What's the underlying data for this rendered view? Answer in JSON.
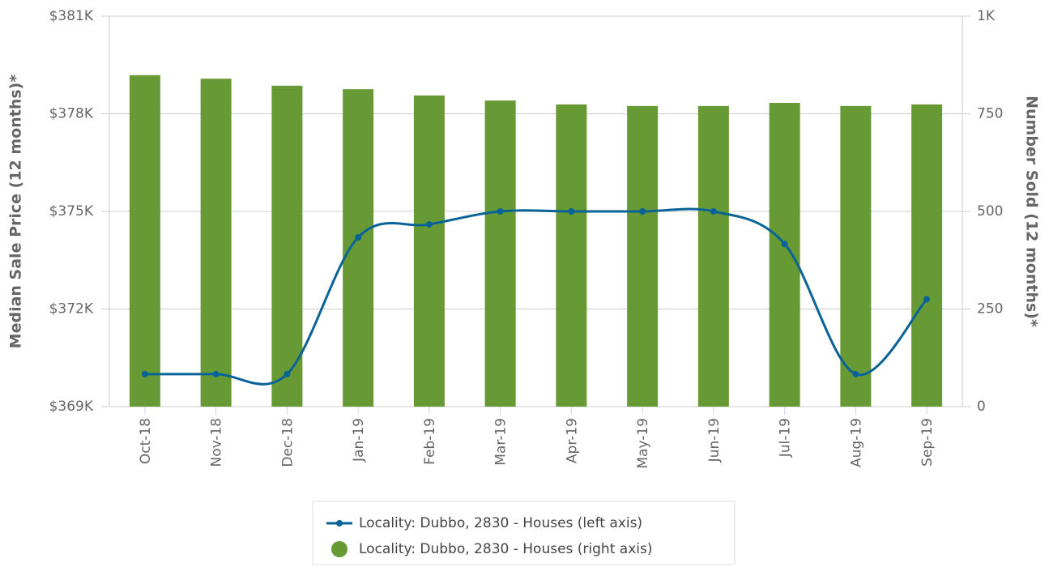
{
  "chart_data": {
    "type": "bar-line",
    "y_label": "Median Sale Price (12 months)*",
    "y2_label": "Number Sold (12 months)*",
    "categories": [
      "Oct-18",
      "Nov-18",
      "Dec-18",
      "Jan-19",
      "Feb-19",
      "Mar-19",
      "Apr-19",
      "May-19",
      "Jun-19",
      "Jul-19",
      "Aug-19",
      "Sep-19"
    ],
    "series": [
      {
        "name": "Locality: Dubbo, 2830 - Houses (left axis)",
        "type": "line",
        "color": "#0a6396",
        "values": [
          370000,
          370000,
          370000,
          374200,
          374600,
          375000,
          375000,
          375000,
          375000,
          374000,
          370000,
          372300
        ]
      },
      {
        "name": "Locality: Dubbo, 2830 - Houses (right axis)",
        "type": "bar",
        "axis": "y2",
        "color": "#679a35",
        "values": [
          849,
          840,
          822,
          813,
          797,
          784,
          774,
          770,
          770,
          778,
          770,
          774
        ]
      }
    ],
    "ylim": [
      369000,
      381000
    ],
    "yticks": [
      {
        "value": 369000,
        "label": "$369K"
      },
      {
        "value": 372000,
        "label": "$372K"
      },
      {
        "value": 375000,
        "label": "$375K"
      },
      {
        "value": 378000,
        "label": "$378K"
      },
      {
        "value": 381000,
        "label": "$381K"
      }
    ],
    "y2lim": [
      0,
      1000
    ],
    "y2ticks": [
      0,
      250,
      500,
      750,
      {
        "value": 1000,
        "label": "1K"
      }
    ],
    "grid": true
  }
}
